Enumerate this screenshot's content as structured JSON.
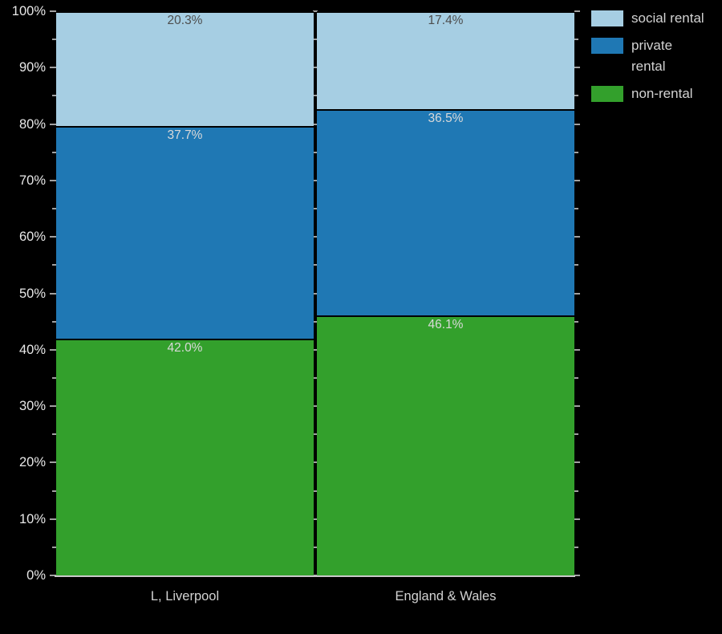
{
  "chart_data": {
    "type": "bar",
    "subtype": "stacked-percentage",
    "title": "",
    "categories": [
      "L, Liverpool",
      "England & Wales"
    ],
    "series": [
      {
        "name": "social rental",
        "legend_label": "social rental",
        "color": "#a6cee3",
        "label_color": "#4d4d4d",
        "values": [
          20.3,
          17.4
        ],
        "labels": [
          "20.3%",
          "17.4%"
        ]
      },
      {
        "name": "private rental",
        "legend_label": "private\nrental",
        "color": "#1f78b4",
        "label_color": "#d9d9d9",
        "values": [
          37.7,
          36.5
        ],
        "labels": [
          "37.7%",
          "36.5%"
        ]
      },
      {
        "name": "non-rental",
        "legend_label": "non-rental",
        "color": "#33a02c",
        "label_color": "#d9d9d9",
        "values": [
          42.0,
          46.1
        ],
        "labels": [
          "42.0%",
          "46.1%"
        ]
      }
    ],
    "y_axis": {
      "ylim": [
        0,
        100
      ],
      "major_step": 10,
      "minor_step": 5,
      "tick_labels": [
        "0%",
        "10%",
        "20%",
        "30%",
        "40%",
        "50%",
        "60%",
        "70%",
        "80%",
        "90%",
        "100%"
      ]
    },
    "legend_position": "top-right",
    "grid": "off",
    "colors": {
      "background": "#000000",
      "axis_label": "#e8e8e8",
      "category_label": "#d2d2d2",
      "tick": "#a0a0a0",
      "baseline": "#c9c9c9"
    }
  }
}
